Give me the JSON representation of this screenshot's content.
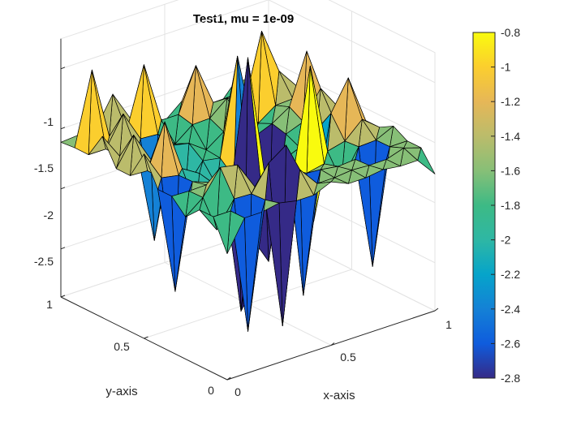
{
  "chart_data": {
    "type": "surface",
    "title": "Test1, mu = 1e-09",
    "xlabel": "x-axis",
    "ylabel": "y-axis",
    "zlabel": "",
    "xlim": [
      0,
      1
    ],
    "ylim": [
      0,
      1
    ],
    "zlim": [
      -2.8,
      -0.8
    ],
    "x_ticks": [
      "0",
      "0.5",
      "1"
    ],
    "y_ticks": [
      "0",
      "0.5",
      "1"
    ],
    "z_ticks": [
      "-2.5",
      "-2",
      "-1.5",
      "-1"
    ],
    "colorbar": {
      "colormap": "parula",
      "range": [
        -2.8,
        -0.8
      ],
      "ticks": [
        "-0.8",
        "-1",
        "-1.2",
        "-1.4",
        "-1.6",
        "-1.8",
        "-2",
        "-2.2",
        "-2.4",
        "-2.6",
        "-2.8"
      ]
    },
    "grid": true,
    "base_level": -1.6,
    "spikes_up": [
      [
        0.1,
        0.9,
        -1.0
      ],
      [
        0.3,
        0.95,
        -1.1
      ],
      [
        0.5,
        0.5,
        -0.85
      ],
      [
        0.55,
        0.7,
        -1.0
      ],
      [
        0.65,
        0.3,
        -0.9
      ],
      [
        0.8,
        0.85,
        -1.05
      ],
      [
        0.9,
        0.4,
        -1.2
      ],
      [
        0.2,
        0.6,
        -1.25
      ],
      [
        0.4,
        0.2,
        -1.3
      ],
      [
        0.15,
        0.25,
        -1.4
      ],
      [
        0.6,
        0.95,
        -1.25
      ],
      [
        0.92,
        0.7,
        -1.15
      ]
    ],
    "spikes_down": [
      [
        0.3,
        0.35,
        -2.75
      ],
      [
        0.45,
        0.45,
        -2.8
      ],
      [
        0.7,
        0.55,
        -2.7
      ],
      [
        0.5,
        0.15,
        -2.6
      ],
      [
        0.2,
        0.1,
        -2.65
      ],
      [
        0.35,
        0.05,
        -2.7
      ],
      [
        0.1,
        0.45,
        -2.5
      ],
      [
        0.8,
        0.2,
        -2.55
      ],
      [
        0.6,
        0.6,
        -2.45
      ],
      [
        0.25,
        0.75,
        -2.4
      ],
      [
        0.75,
        0.4,
        -2.3
      ]
    ]
  }
}
